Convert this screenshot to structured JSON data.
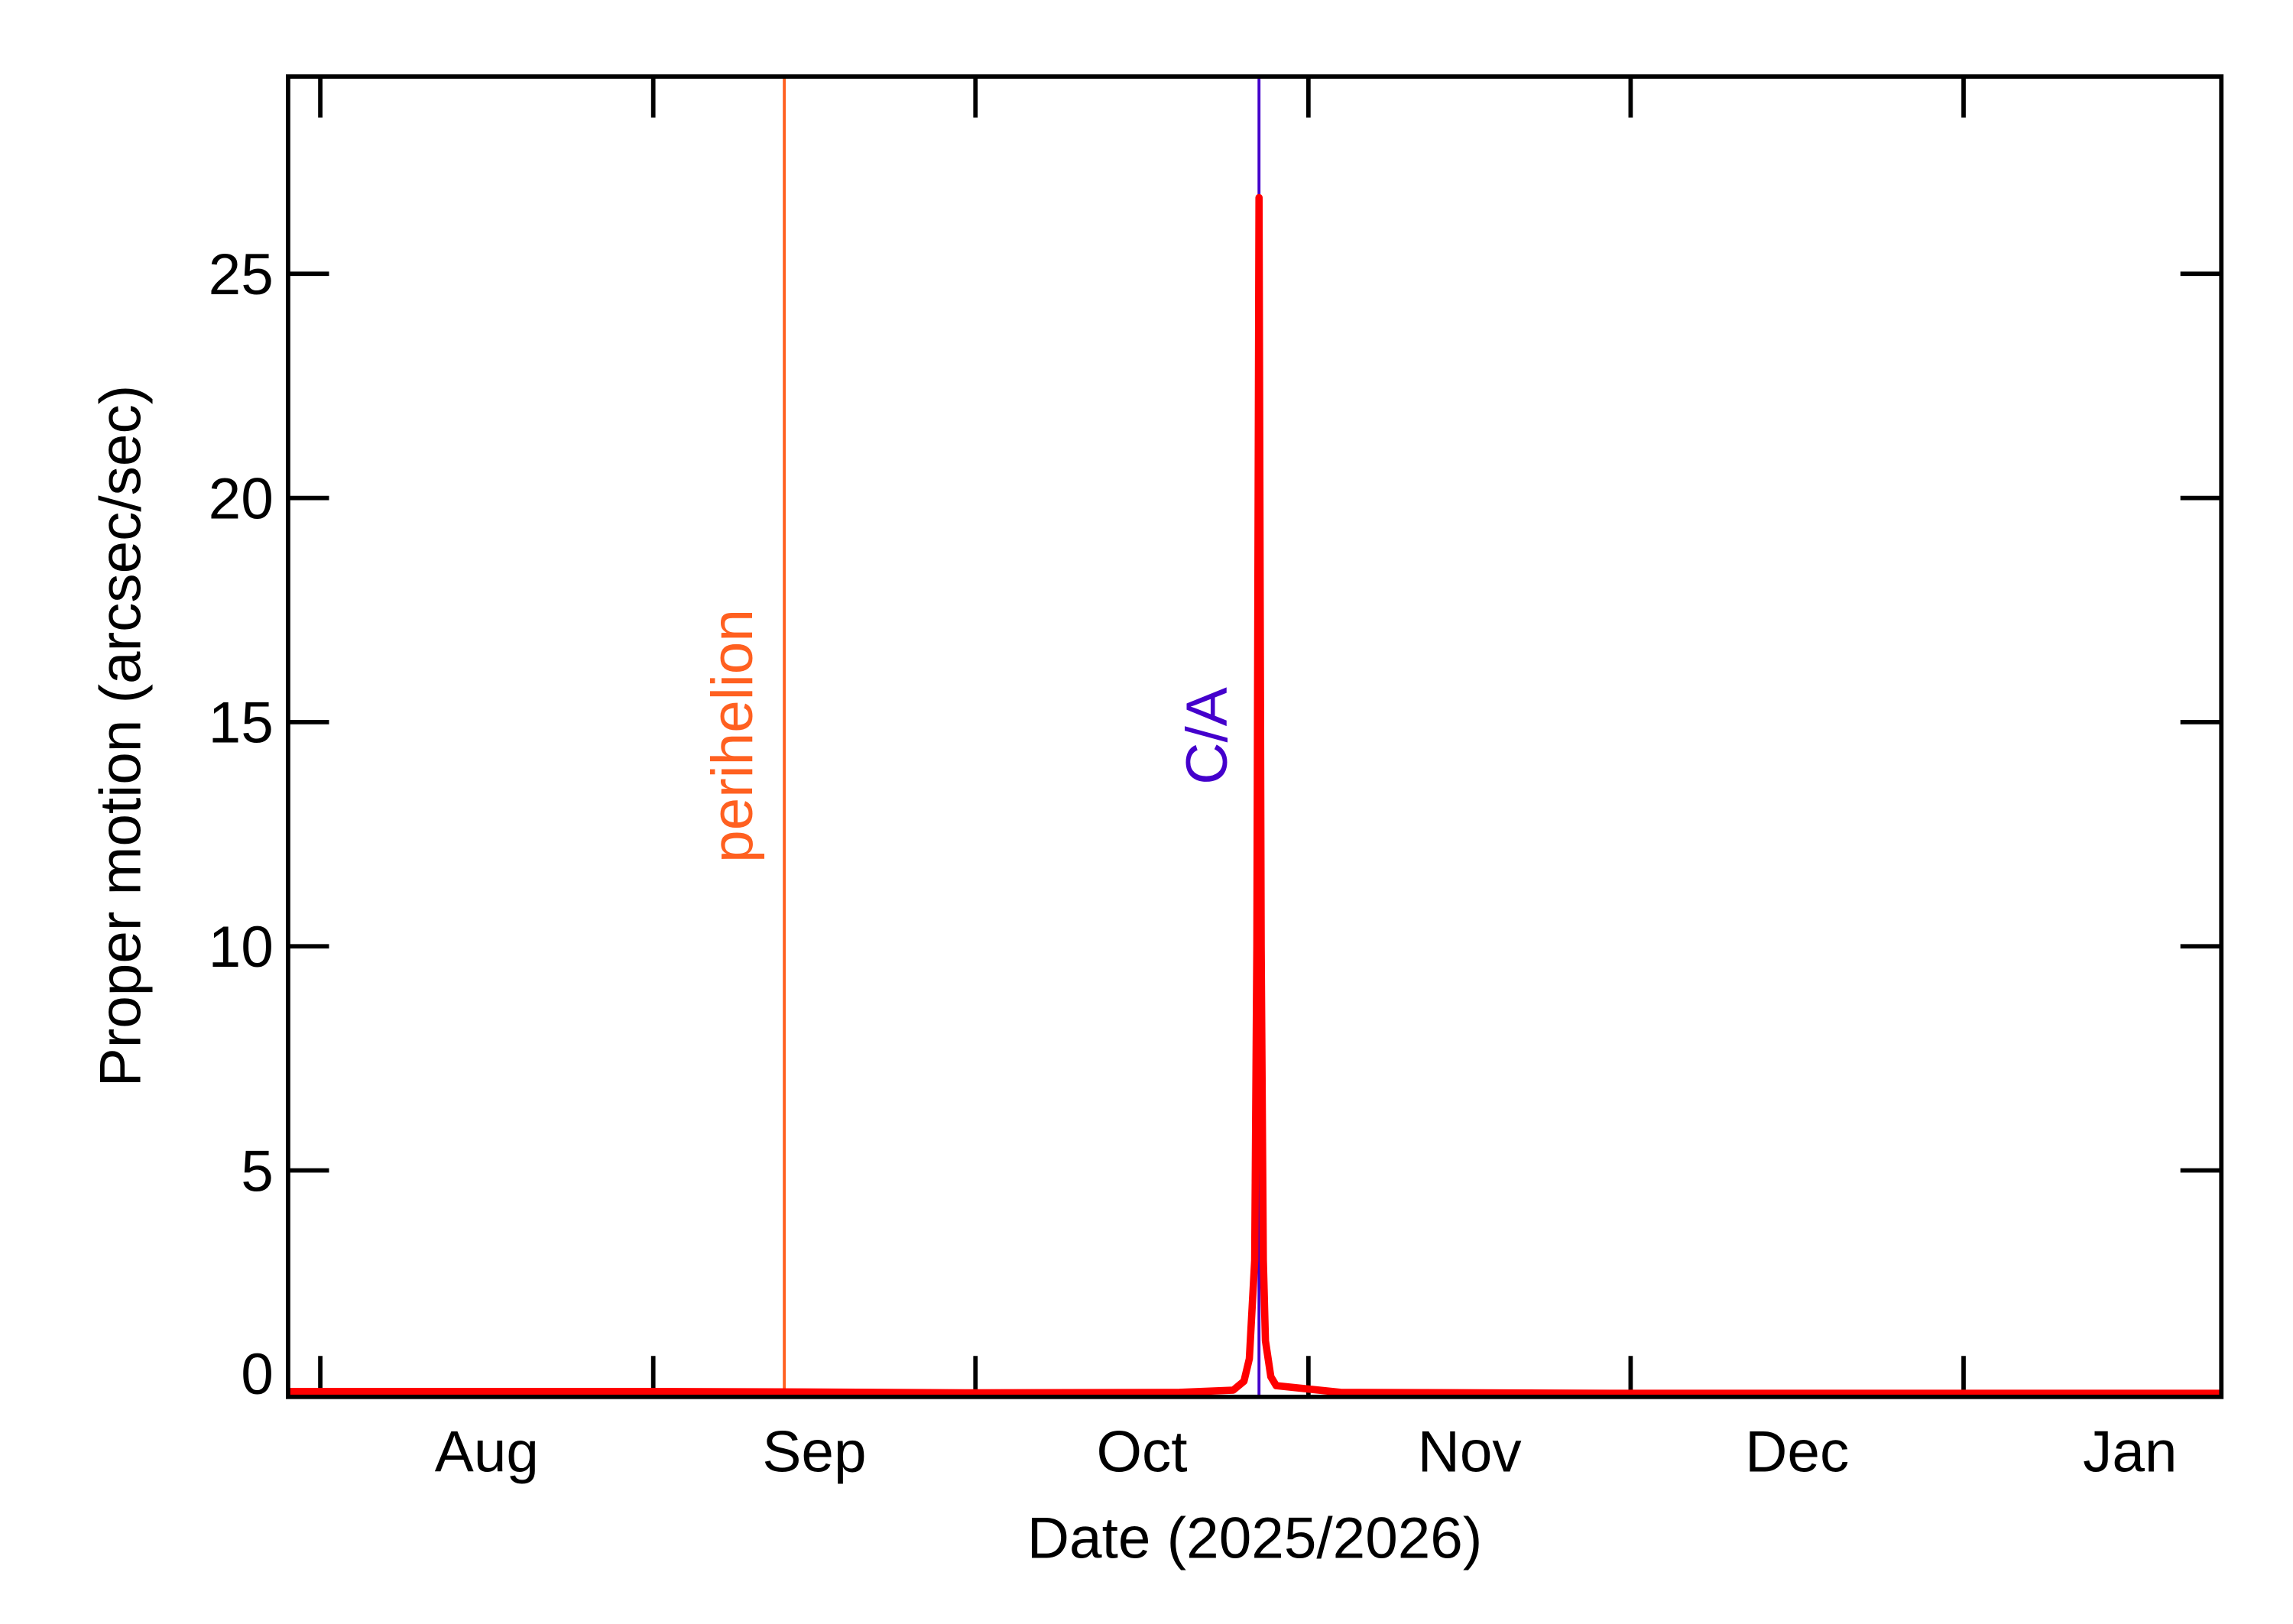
{
  "chart_data": {
    "type": "line",
    "x_label": "Date (2025/2026)",
    "y_label": "Proper motion (arcsec/sec)",
    "xlim": [
      -3,
      177
    ],
    "xticks": [
      {
        "value": 0,
        "label": "Aug"
      },
      {
        "value": 31,
        "label": "Sep"
      },
      {
        "value": 61,
        "label": "Oct"
      },
      {
        "value": 92,
        "label": "Nov"
      },
      {
        "value": 122,
        "label": "Dec"
      },
      {
        "value": 153,
        "label": "Jan"
      }
    ],
    "ylim": [
      -0.05,
      29.4
    ],
    "yticks": [
      0,
      5,
      10,
      15,
      20,
      25
    ],
    "series": [
      {
        "name": "proper motion",
        "color": "#ff0000",
        "x": [
          -3,
          0,
          30,
          45,
          60,
          80,
          85,
          86,
          86.5,
          87,
          87.2,
          87.4,
          87.6,
          87.8,
          88,
          88.5,
          89,
          95,
          120,
          150,
          177
        ],
        "values": [
          0.07,
          0.07,
          0.07,
          0.06,
          0.04,
          0.05,
          0.1,
          0.3,
          0.8,
          3,
          10,
          26.7,
          10,
          3,
          1.2,
          0.4,
          0.2,
          0.05,
          0.03,
          0.03,
          0.03
        ]
      }
    ],
    "annotations": [
      {
        "text": "perihelion",
        "x": 43.2,
        "color": "#ff6020"
      },
      {
        "text": "C/A",
        "x": 87.4,
        "color": "#4400cc"
      }
    ]
  }
}
